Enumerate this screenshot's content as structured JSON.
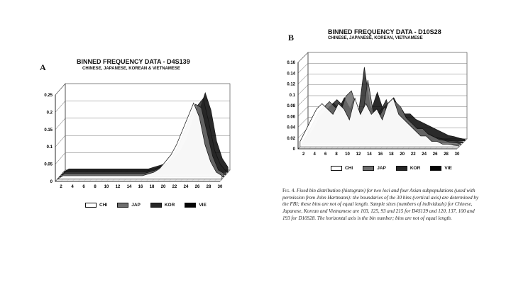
{
  "chart_data": [
    {
      "type": "area",
      "panel": "A",
      "title": "BINNED FREQUENCY DATA - D4S139",
      "subtitle": "CHINESE, JAPANESE, KOREAN & VIETNAMESE",
      "y_ticks": [
        "0",
        "0.05",
        "0.1",
        "0.15",
        "0.2",
        "0.25"
      ],
      "ylim": [
        0,
        0.25
      ],
      "x_ticks": [
        "2",
        "4",
        "6",
        "8",
        "10",
        "12",
        "14",
        "16",
        "18",
        "20",
        "22",
        "24",
        "26",
        "28",
        "30"
      ],
      "x": [
        1,
        2,
        3,
        4,
        5,
        6,
        7,
        8,
        9,
        10,
        11,
        12,
        13,
        14,
        15,
        16,
        17,
        18,
        19,
        20,
        21,
        22,
        23,
        24,
        25,
        26,
        27,
        28,
        29,
        30
      ],
      "grid": true,
      "legend_position": "bottom",
      "series": [
        {
          "name": "CHI",
          "values": [
            0,
            0.01,
            0.01,
            0.01,
            0.01,
            0.01,
            0.01,
            0.01,
            0.01,
            0.01,
            0.01,
            0.01,
            0.01,
            0.01,
            0.01,
            0.01,
            0.015,
            0.02,
            0.03,
            0.05,
            0.07,
            0.1,
            0.14,
            0.18,
            0.22,
            0.18,
            0.1,
            0.05,
            0.02,
            0.01
          ]
        },
        {
          "name": "JAP",
          "values": [
            0,
            0.01,
            0.01,
            0.01,
            0.01,
            0.01,
            0.01,
            0.01,
            0.01,
            0.01,
            0.01,
            0.01,
            0.01,
            0.01,
            0.01,
            0.01,
            0.015,
            0.02,
            0.03,
            0.04,
            0.06,
            0.09,
            0.13,
            0.17,
            0.21,
            0.2,
            0.13,
            0.06,
            0.02,
            0.01
          ]
        },
        {
          "name": "KOR",
          "values": [
            0,
            0.01,
            0.01,
            0.01,
            0.01,
            0.01,
            0.01,
            0.01,
            0.01,
            0.01,
            0.01,
            0.01,
            0.01,
            0.01,
            0.01,
            0.01,
            0.015,
            0.02,
            0.025,
            0.035,
            0.05,
            0.07,
            0.1,
            0.15,
            0.2,
            0.22,
            0.15,
            0.07,
            0.03,
            0.01
          ]
        },
        {
          "name": "VIE",
          "values": [
            0,
            0.01,
            0.01,
            0.01,
            0.01,
            0.01,
            0.01,
            0.01,
            0.01,
            0.01,
            0.01,
            0.01,
            0.01,
            0.01,
            0.01,
            0.01,
            0.015,
            0.02,
            0.025,
            0.03,
            0.045,
            0.06,
            0.09,
            0.13,
            0.18,
            0.23,
            0.18,
            0.09,
            0.04,
            0.015
          ]
        }
      ]
    },
    {
      "type": "area",
      "panel": "B",
      "title": "BINNED FREQUENCY DATA - D10S28",
      "subtitle": "CHINESE, JAPANESE, KOREAN, VIETNAMESE",
      "y_ticks": [
        "0",
        "0.02",
        "0.04",
        "0.06",
        "0.08",
        "0.1",
        "0.12",
        "0.14",
        "0.16"
      ],
      "ylim": [
        0,
        0.16
      ],
      "x_ticks": [
        "2",
        "4",
        "6",
        "8",
        "10",
        "12",
        "14",
        "16",
        "18",
        "20",
        "22",
        "24",
        "26",
        "28",
        "30"
      ],
      "x": [
        1,
        2,
        3,
        4,
        5,
        6,
        7,
        8,
        9,
        10,
        11,
        12,
        13,
        14,
        15,
        16,
        17,
        18,
        19,
        20,
        21,
        22,
        23,
        24,
        25,
        26,
        27,
        28,
        29,
        30
      ],
      "grid": true,
      "legend_position": "bottom",
      "series": [
        {
          "name": "CHI",
          "values": [
            0.01,
            0.03,
            0.05,
            0.07,
            0.08,
            0.07,
            0.06,
            0.08,
            0.07,
            0.05,
            0.09,
            0.06,
            0.08,
            0.06,
            0.07,
            0.05,
            0.08,
            0.09,
            0.06,
            0.05,
            0.04,
            0.03,
            0.02,
            0.02,
            0.01,
            0.01,
            0.005,
            0.005,
            0.003,
            0.002
          ]
        },
        {
          "name": "JAP",
          "values": [
            0.005,
            0.02,
            0.04,
            0.06,
            0.07,
            0.08,
            0.07,
            0.06,
            0.09,
            0.1,
            0.07,
            0.05,
            0.12,
            0.06,
            0.05,
            0.07,
            0.06,
            0.08,
            0.07,
            0.05,
            0.04,
            0.03,
            0.03,
            0.02,
            0.015,
            0.01,
            0.008,
            0.005,
            0.004,
            0.002
          ]
        },
        {
          "name": "KOR",
          "values": [
            0.005,
            0.015,
            0.03,
            0.05,
            0.06,
            0.07,
            0.08,
            0.07,
            0.05,
            0.08,
            0.06,
            0.14,
            0.07,
            0.05,
            0.06,
            0.08,
            0.05,
            0.07,
            0.06,
            0.04,
            0.03,
            0.025,
            0.02,
            0.015,
            0.01,
            0.008,
            0.006,
            0.004,
            0.003,
            0.002
          ]
        },
        {
          "name": "VIE",
          "values": [
            0.003,
            0.01,
            0.02,
            0.04,
            0.06,
            0.07,
            0.06,
            0.08,
            0.06,
            0.07,
            0.05,
            0.07,
            0.06,
            0.09,
            0.06,
            0.07,
            0.08,
            0.06,
            0.05,
            0.05,
            0.04,
            0.035,
            0.03,
            0.025,
            0.02,
            0.015,
            0.01,
            0.008,
            0.005,
            0.003
          ]
        }
      ]
    }
  ],
  "panel_a": {
    "letter": "A"
  },
  "panel_b": {
    "letter": "B"
  },
  "legend_colors": {
    "CHI": "#ffffff",
    "JAP": "#6e6e6e",
    "KOR": "#262626",
    "VIE": "#050505"
  },
  "caption": {
    "fig": "Fig. 4.",
    "text": "Fixed bin distribution (histogram) for two loci and four Asian subpopulations (used with permission from John Hartmann): the boundaries of the 30 bins (vertical axis) are determined by the FBI; these bins are not of equal length. Sample sizes (numbers of individuals) for Chinese, Japanese, Korean and Vietnamese are 103, 125, 93 and 215 for D4S139 and 120, 137, 100 and 193 for D10S28. The horizontal axis is the bin number; bins are not of equal length."
  }
}
